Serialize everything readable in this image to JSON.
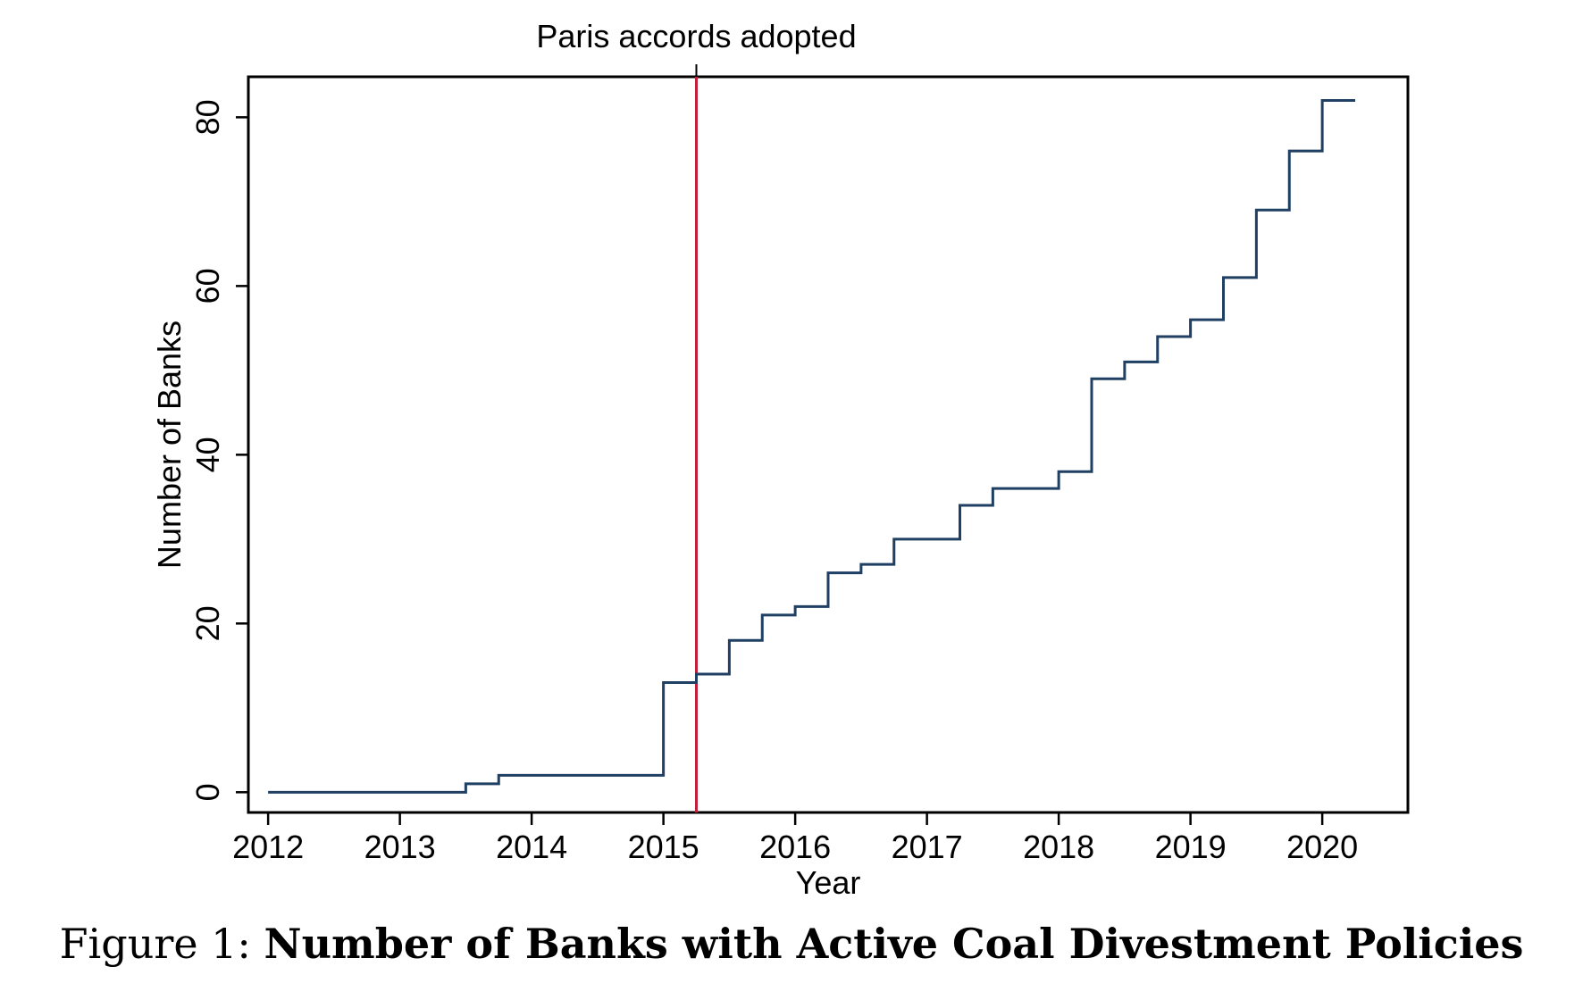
{
  "caption": {
    "prefix": "Figure 1: ",
    "title": "Number of Banks with Active Coal Divestment Policies"
  },
  "colors": {
    "series": "#1f3f63",
    "event_line": "#c0203a",
    "axis": "#000000"
  },
  "chart_data": {
    "type": "line",
    "step": true,
    "xlabel": "Year",
    "ylabel": "Number of Banks",
    "xlim": [
      2011.85,
      2020.65
    ],
    "ylim": [
      -2.4,
      84.8
    ],
    "xticks": [
      2012,
      2013,
      2014,
      2015,
      2016,
      2017,
      2018,
      2019,
      2020
    ],
    "yticks": [
      0,
      20,
      40,
      60,
      80
    ],
    "grid": false,
    "annotations": [
      {
        "type": "vline",
        "x": 2015.25,
        "label": "Paris accords adopted"
      }
    ],
    "series": [
      {
        "x": [
          2012.0,
          2013.5,
          2013.75,
          2015.0,
          2015.25,
          2015.5,
          2015.75,
          2016.0,
          2016.25,
          2016.5,
          2016.75,
          2017.25,
          2017.5,
          2018.0,
          2018.25,
          2018.5,
          2018.75,
          2019.0,
          2019.25,
          2019.5,
          2019.75,
          2020.0,
          2020.25
        ],
        "y": [
          0,
          1,
          2,
          13,
          14,
          18,
          21,
          22,
          26,
          27,
          30,
          34,
          36,
          38,
          49,
          51,
          54,
          56,
          61,
          69,
          76,
          82,
          82
        ]
      }
    ]
  }
}
